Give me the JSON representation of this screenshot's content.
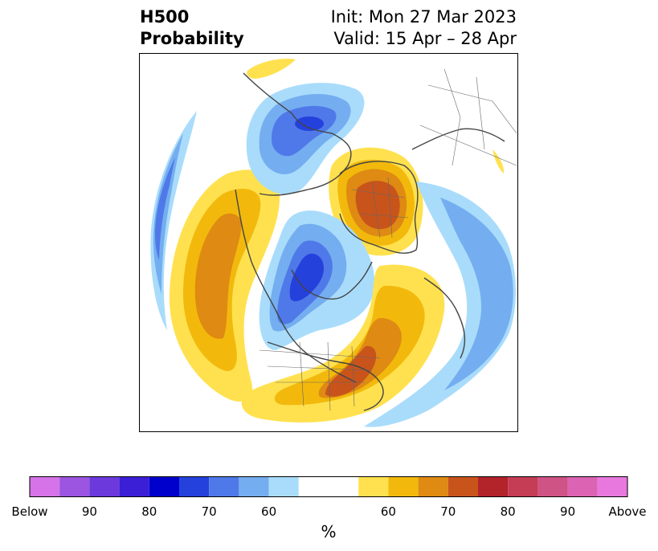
{
  "header": {
    "title_line1": "H500",
    "title_line2": "Probability",
    "init": "Init: Mon 27 Mar 2023",
    "valid": "Valid: 15 Apr – 28 Apr"
  },
  "colorbar": {
    "colors": [
      "#d673e8",
      "#9b55e0",
      "#6c3adc",
      "#3b1fd6",
      "#0000cc",
      "#2541dc",
      "#4f79e8",
      "#74aef0",
      "#a9dcfb",
      "#ffffff",
      "#ffe14f",
      "#f2b90c",
      "#de8a13",
      "#c8541c",
      "#b2232a",
      "#c53c55",
      "#cf5385",
      "#dc63b4",
      "#e878de"
    ],
    "tick_labels": [
      "Below",
      "90",
      "80",
      "70",
      "60",
      "60",
      "70",
      "80",
      "90",
      "Above"
    ],
    "unit_label": "%"
  }
}
